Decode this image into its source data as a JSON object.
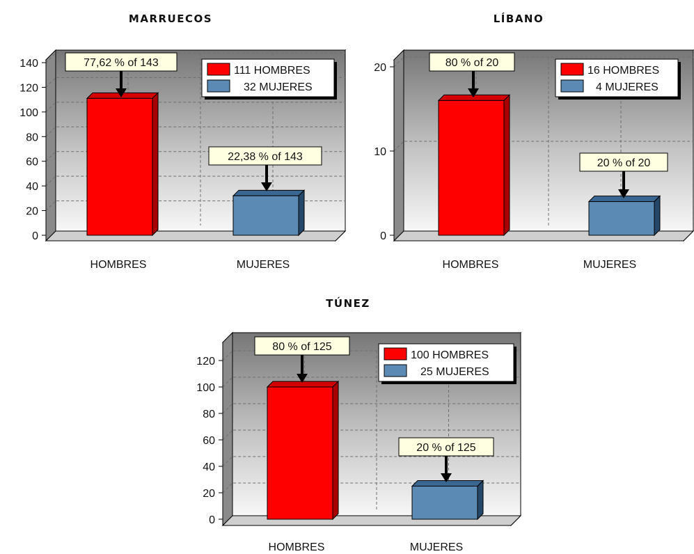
{
  "colors": {
    "hombres_front": "#ff0000",
    "hombres_top": "#d40000",
    "hombres_side": "#a80000",
    "mujeres_front": "#5b8ab5",
    "mujeres_top": "#3a6791",
    "mujeres_side": "#24476a",
    "label_bg": "#ffffe1"
  },
  "chart_data": [
    {
      "type": "bar",
      "title": "MARRUECOS",
      "categories": [
        "HOMBRES",
        "MUJERES"
      ],
      "values": [
        111,
        32
      ],
      "ylim": [
        0,
        140
      ],
      "yticks": [
        0,
        20,
        40,
        60,
        80,
        100,
        120,
        140
      ],
      "grid": true,
      "legend": {
        "position": "top-right",
        "entries": [
          "111 HOMBRES",
          "32 MUJERES"
        ]
      },
      "data_labels": [
        "77,62 % of 143",
        "22,38 % of 143"
      ]
    },
    {
      "type": "bar",
      "title": "LÍBANO",
      "categories": [
        "HOMBRES",
        "MUJERES"
      ],
      "values": [
        16,
        4
      ],
      "ylim": [
        0,
        20
      ],
      "yticks": [
        0,
        10,
        20
      ],
      "grid": true,
      "legend": {
        "position": "top-right",
        "entries": [
          "16 HOMBRES",
          "4 MUJERES"
        ]
      },
      "data_labels": [
        "80 % of 20",
        "20 % of 20"
      ]
    },
    {
      "type": "bar",
      "title": "TÚNEZ",
      "categories": [
        "HOMBRES",
        "MUJERES"
      ],
      "values": [
        100,
        25
      ],
      "ylim": [
        0,
        120
      ],
      "yticks": [
        0,
        20,
        40,
        60,
        80,
        100,
        120
      ],
      "grid": true,
      "legend": {
        "position": "top-right",
        "entries": [
          "100 HOMBRES",
          "25 MUJERES"
        ]
      },
      "data_labels": [
        "80 % of 125",
        "20 % of 125"
      ]
    }
  ]
}
